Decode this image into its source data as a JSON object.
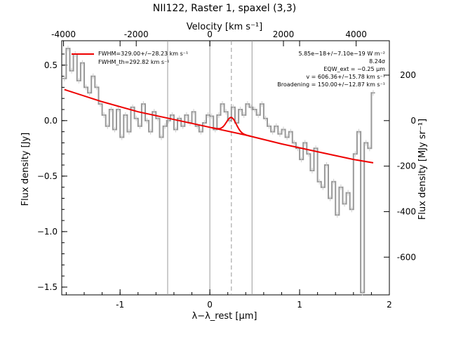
{
  "chart_data": {
    "type": "line",
    "title": "NII122, Raster 1, spaxel (3,3)",
    "xlabel": "λ−λ_rest [μm]",
    "ylabel": "Flux density [Jy]",
    "top_xlabel": "Velocity [km s⁻¹]",
    "right_ylabel": "Flux density [MJy sr⁻¹]",
    "xlim": [
      -1.65,
      2.0
    ],
    "ylim": [
      -1.57,
      0.72
    ],
    "x_ticks": [
      -1,
      0,
      1,
      2
    ],
    "y_ticks": [
      0.5,
      0.0,
      -0.5,
      -1.0,
      -1.5
    ],
    "y_tick_labels": [
      "0.5",
      "0.0",
      "−0.5",
      "−1.0",
      "−1.5"
    ],
    "top_ticks": [
      -4000,
      -2000,
      0,
      2000,
      4000
    ],
    "top_tick_positions_um": [
      -1.63,
      -0.82,
      0.0,
      0.82,
      1.63
    ],
    "right_ticks": [
      200,
      0,
      -200,
      -400,
      -600
    ],
    "right_tick_positions_jy": [
      0.41,
      0.0,
      -0.41,
      -0.82,
      -1.23
    ],
    "vertical_lines": [
      {
        "x": -0.47,
        "style": "solid"
      },
      {
        "x": 0.0,
        "style": "solid"
      },
      {
        "x": 0.24,
        "style": "dashed"
      },
      {
        "x": 0.47,
        "style": "solid"
      }
    ],
    "series": [
      {
        "name": "",
        "color": "#999999",
        "x": [
          -1.62,
          -1.58,
          -1.54,
          -1.5,
          -1.46,
          -1.42,
          -1.38,
          -1.34,
          -1.3,
          -1.26,
          -1.22,
          -1.18,
          -1.14,
          -1.1,
          -1.06,
          -1.02,
          -0.98,
          -0.94,
          -0.9,
          -0.86,
          -0.82,
          -0.78,
          -0.74,
          -0.7,
          -0.66,
          -0.62,
          -0.58,
          -0.54,
          -0.5,
          -0.46,
          -0.42,
          -0.38,
          -0.34,
          -0.3,
          -0.26,
          -0.22,
          -0.18,
          -0.14,
          -0.1,
          -0.06,
          -0.02,
          0.02,
          0.06,
          0.1,
          0.14,
          0.18,
          0.22,
          0.26,
          0.3,
          0.34,
          0.38,
          0.42,
          0.46,
          0.5,
          0.54,
          0.58,
          0.62,
          0.66,
          0.7,
          0.74,
          0.78,
          0.82,
          0.86,
          0.9,
          0.94,
          0.98,
          1.02,
          1.06,
          1.1,
          1.14,
          1.18,
          1.22,
          1.26,
          1.3,
          1.34,
          1.38,
          1.42,
          1.46,
          1.5,
          1.54,
          1.58,
          1.62,
          1.66,
          1.7,
          1.74,
          1.78,
          1.82
        ],
        "values": [
          0.38,
          0.65,
          0.45,
          0.6,
          0.36,
          0.52,
          0.3,
          0.25,
          0.4,
          0.3,
          0.15,
          0.05,
          -0.05,
          0.1,
          -0.08,
          0.1,
          -0.15,
          0.05,
          -0.1,
          0.12,
          0.02,
          -0.05,
          0.15,
          0.0,
          -0.1,
          0.08,
          0.02,
          -0.15,
          -0.05,
          0.0,
          0.05,
          -0.08,
          0.02,
          -0.05,
          0.05,
          -0.02,
          0.08,
          -0.05,
          -0.1,
          -0.02,
          0.05,
          0.04,
          -0.08,
          0.05,
          0.15,
          0.08,
          0.0,
          0.12,
          -0.02,
          0.1,
          0.05,
          0.15,
          0.12,
          0.1,
          0.05,
          0.15,
          0.02,
          -0.05,
          -0.1,
          -0.05,
          -0.12,
          -0.08,
          -0.15,
          -0.1,
          -0.2,
          -0.25,
          -0.35,
          -0.2,
          -0.3,
          -0.45,
          -0.25,
          -0.55,
          -0.6,
          -0.4,
          -0.7,
          -0.55,
          -0.85,
          -0.6,
          -0.75,
          -0.65,
          -0.8,
          -0.3,
          -0.1,
          -1.55,
          -0.2,
          -0.25,
          0.25
        ]
      },
      {
        "name": "",
        "color": "#ee0000",
        "x": [
          -1.62,
          -1.2,
          -0.8,
          -0.4,
          0.0,
          0.4,
          0.8,
          1.2,
          1.6,
          1.82
        ],
        "values": [
          0.28,
          0.17,
          0.08,
          0.01,
          -0.06,
          -0.13,
          -0.21,
          -0.28,
          -0.35,
          -0.38
        ]
      }
    ],
    "gaussian_fit": {
      "center": 0.24,
      "peak": 0.13,
      "sigma": 0.055
    },
    "legend": {
      "entries": [
        "FWHM=329.00+/−28.23 km s⁻¹",
        "FWHM_th=292.82 km s⁻¹"
      ],
      "color": "#ee0000",
      "placement": "top-left"
    },
    "annotations": [
      "5.85e−18+/−7.10e−19 W m⁻²",
      "8.24σ",
      "EQW_ext = −0.25 μm",
      "v = 606.36+/−15.78 km s⁻¹",
      "Broadening = 150.00+/−12.87 km s⁻¹"
    ],
    "grid": false
  }
}
